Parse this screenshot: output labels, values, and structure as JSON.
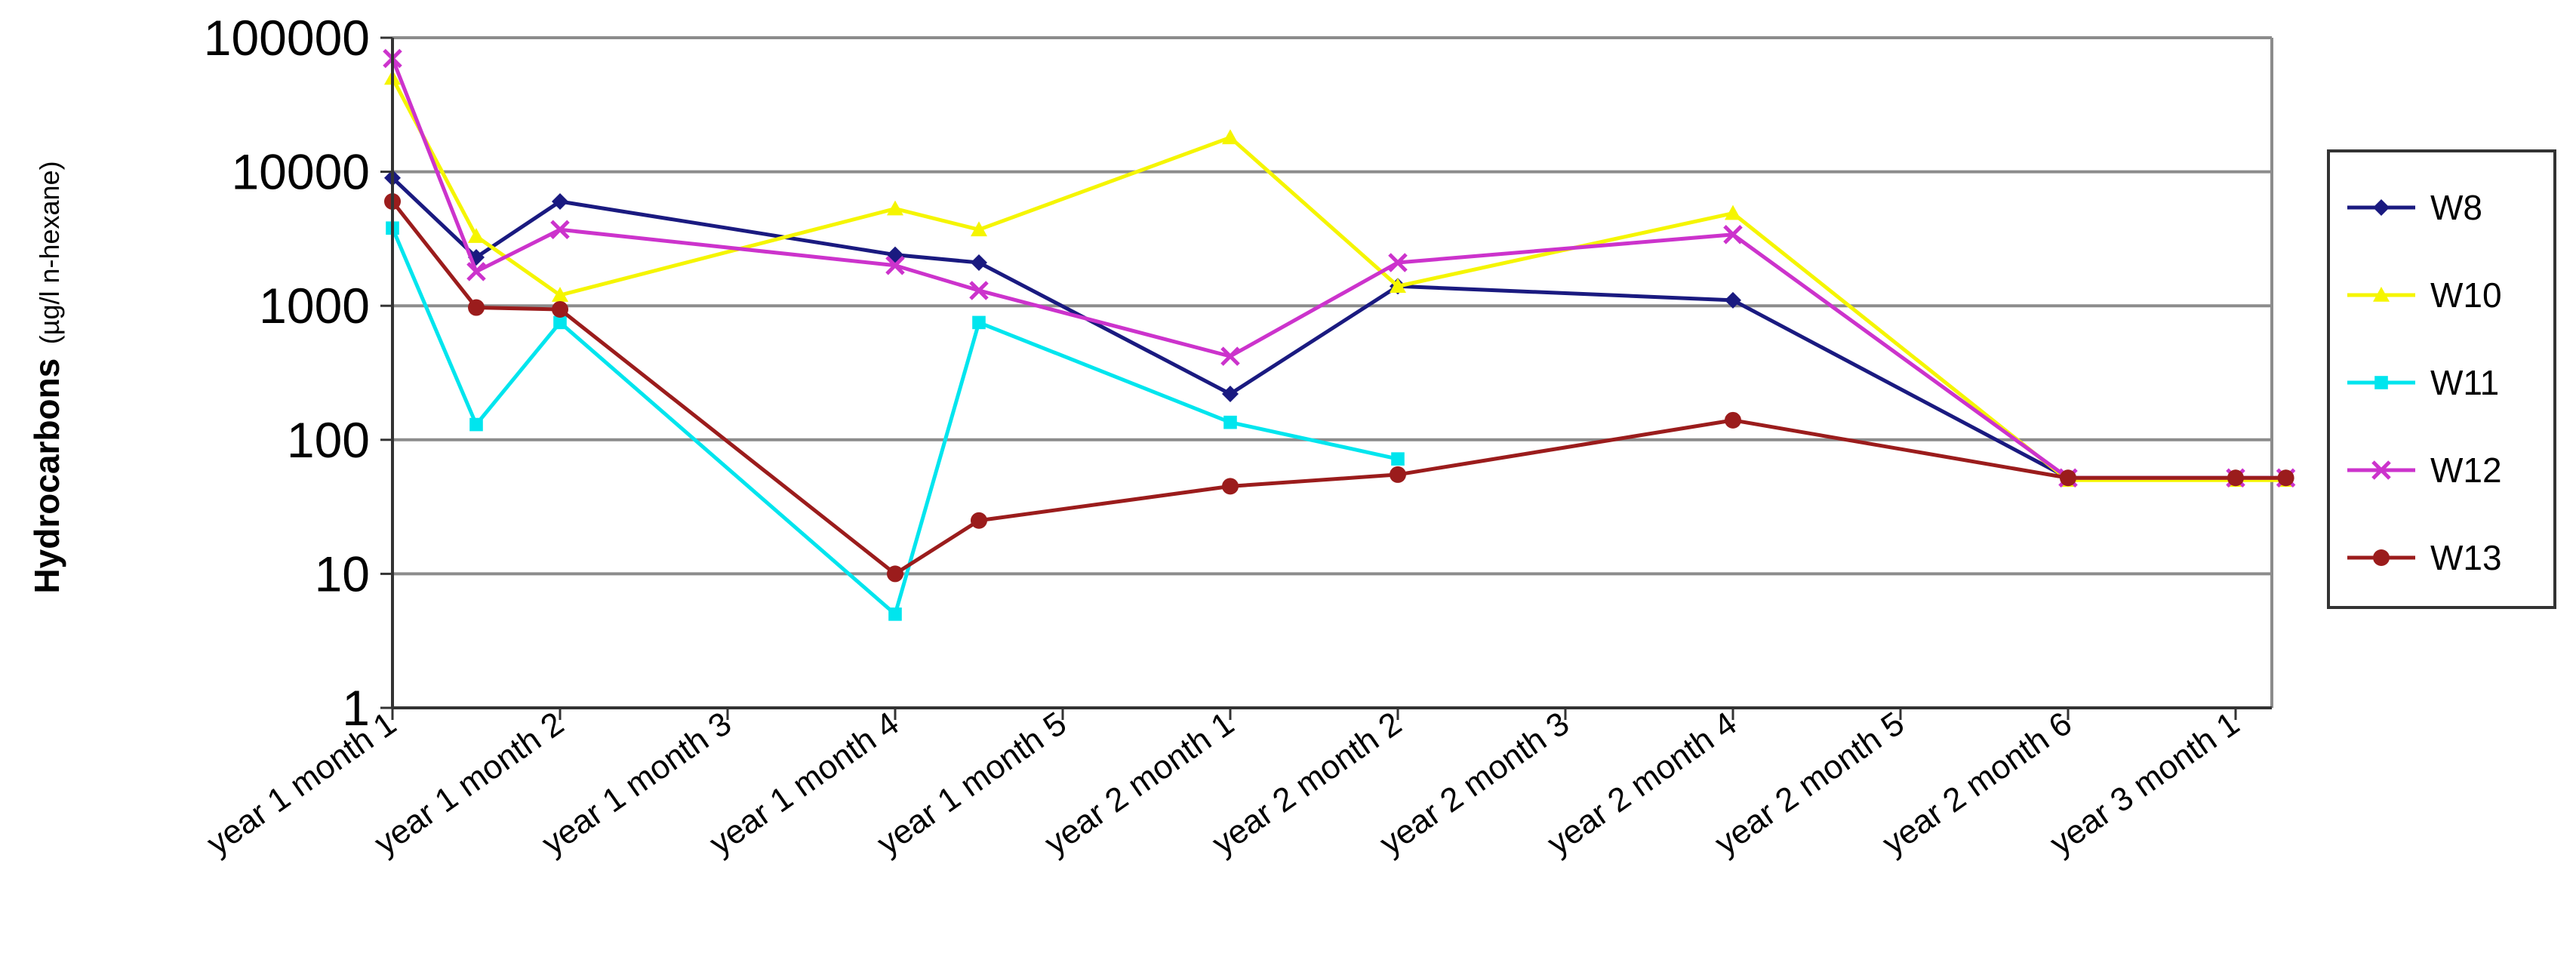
{
  "chart_data": {
    "type": "line",
    "ylabel": "Hydrocarbons",
    "ylabel_unit": "(µg/l n-hexane)",
    "yscale": "log",
    "ylim": [
      1,
      100000
    ],
    "y_ticks": [
      "1",
      "10",
      "100",
      "1000",
      "10000",
      "100000"
    ],
    "grid": "horizontal",
    "legend_position": "right",
    "categories": [
      "year 1 month 1",
      "year 1 month 2",
      "year 1 month 3",
      "year 1 month 4",
      "year 1 month 5",
      "year 2 month 1",
      "year 2 month 2",
      "year 2 month 3",
      "year 2 month 4",
      "year 2 month 5",
      "year 2 month 6",
      "year 3 month 1"
    ],
    "series": [
      {
        "name": "W8",
        "color": "#1a1a80",
        "marker": "diamond",
        "points": [
          [
            0,
            9000
          ],
          [
            0.5,
            2300
          ],
          [
            1,
            6000
          ],
          [
            3,
            2400
          ],
          [
            3.5,
            2100
          ],
          [
            5,
            220
          ],
          [
            6,
            1400
          ],
          [
            8,
            1100
          ],
          [
            10,
            52
          ],
          [
            11,
            52
          ],
          [
            11.3,
            52
          ]
        ]
      },
      {
        "name": "W10",
        "color": "#f5f500",
        "marker": "triangle",
        "points": [
          [
            0,
            50000
          ],
          [
            0.5,
            3300
          ],
          [
            1,
            1200
          ],
          [
            3,
            5300
          ],
          [
            3.5,
            3700
          ],
          [
            5,
            18000
          ],
          [
            6,
            1400
          ],
          [
            8,
            4900
          ],
          [
            10,
            50
          ],
          [
            11,
            50
          ],
          [
            11.3,
            50
          ]
        ]
      },
      {
        "name": "W11",
        "color": "#00e5ee",
        "marker": "square",
        "points": [
          [
            0,
            3800
          ],
          [
            0.5,
            130
          ],
          [
            1,
            750
          ],
          [
            3,
            5
          ],
          [
            3.5,
            750
          ],
          [
            5,
            135
          ],
          [
            6,
            72
          ]
        ]
      },
      {
        "name": "W12",
        "color": "#cc33cc",
        "marker": "x",
        "points": [
          [
            0,
            70000
          ],
          [
            0.5,
            1800
          ],
          [
            1,
            3700
          ],
          [
            3,
            2000
          ],
          [
            3.5,
            1300
          ],
          [
            5,
            420
          ],
          [
            6,
            2100
          ],
          [
            8,
            3400
          ],
          [
            10,
            52
          ],
          [
            11,
            52
          ],
          [
            11.3,
            52
          ]
        ]
      },
      {
        "name": "W13",
        "color": "#9b1c1c",
        "marker": "circle",
        "points": [
          [
            0,
            6000
          ],
          [
            0.5,
            970
          ],
          [
            1,
            940
          ],
          [
            3,
            10
          ],
          [
            3.5,
            25
          ],
          [
            5,
            45
          ],
          [
            6,
            55
          ],
          [
            8,
            140
          ],
          [
            10,
            52
          ],
          [
            11,
            52
          ],
          [
            11.3,
            52
          ]
        ]
      }
    ]
  }
}
